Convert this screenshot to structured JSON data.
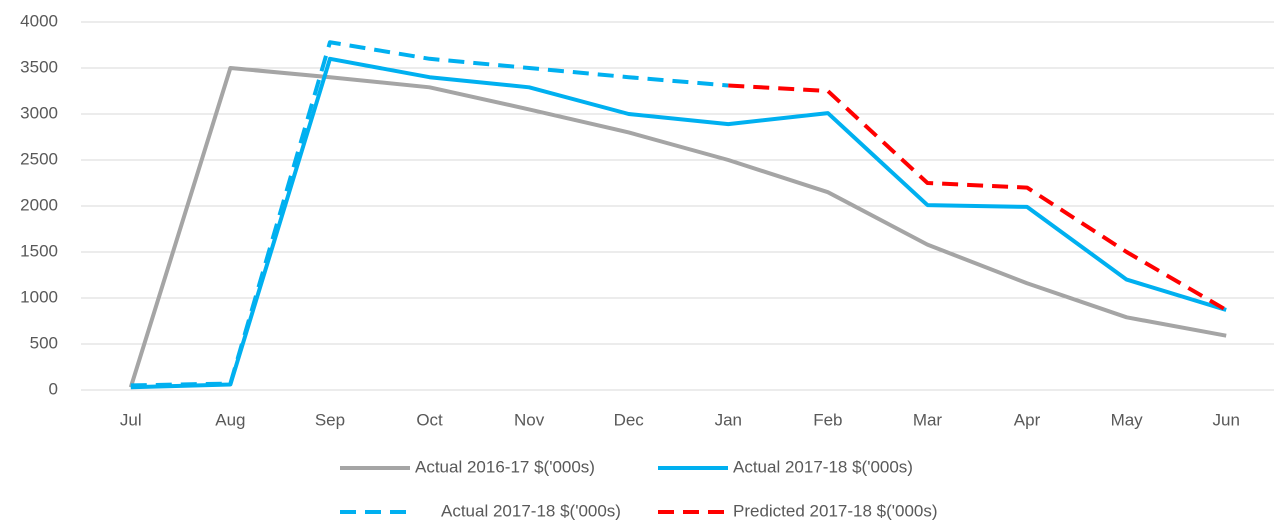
{
  "chart_data": {
    "type": "line",
    "categories": [
      "Jul",
      "Aug",
      "Sep",
      "Oct",
      "Nov",
      "Dec",
      "Jan",
      "Feb",
      "Mar",
      "Apr",
      "May",
      "Jun"
    ],
    "series": [
      {
        "name": "Actual 2016-17 $('000s)",
        "color": "#a5a5a5",
        "dashed": false,
        "values": [
          30,
          3500,
          3400,
          3290,
          3050,
          2800,
          2500,
          2150,
          1580,
          1160,
          790,
          590
        ]
      },
      {
        "name": "Actual 2017-18 $('000s)",
        "color": "#00b0f0",
        "dashed": false,
        "values": [
          30,
          60,
          3600,
          3400,
          3290,
          3000,
          2890,
          3010,
          2010,
          1990,
          1200,
          870
        ]
      },
      {
        "name": "Actual 2017-18 $('000s)",
        "color": "#00b0f0",
        "dashed": true,
        "values": [
          50,
          70,
          3780,
          3600,
          3500,
          3400,
          3310,
          null,
          null,
          null,
          null,
          null
        ]
      },
      {
        "name": "Predicted 2017-18 $('000s)",
        "color": "#ff0000",
        "dashed": true,
        "values": [
          null,
          null,
          null,
          null,
          null,
          null,
          3310,
          3250,
          2250,
          2200,
          1500,
          870
        ]
      }
    ],
    "ylim": [
      0,
      4000
    ],
    "yticks": [
      0,
      500,
      1000,
      1500,
      2000,
      2500,
      3000,
      3500,
      4000
    ],
    "grid": true,
    "legend": "bottom"
  }
}
